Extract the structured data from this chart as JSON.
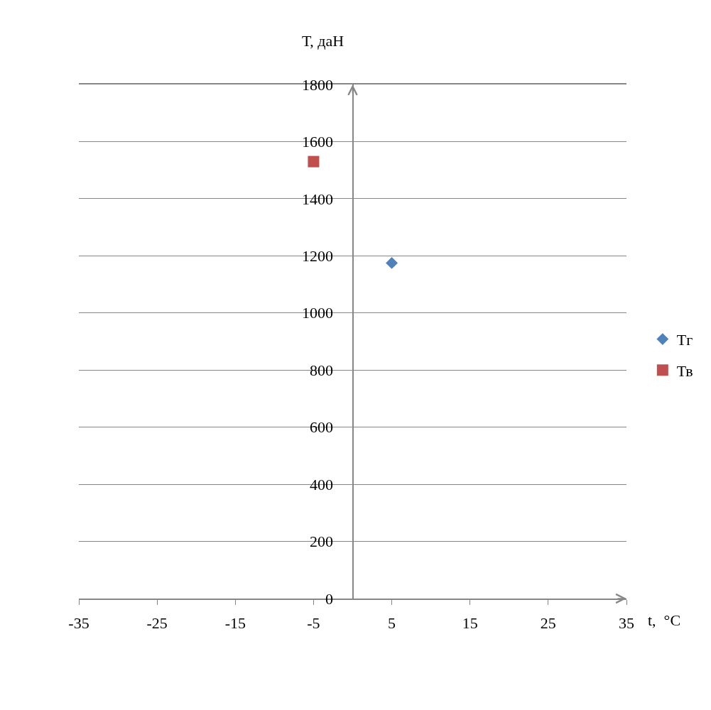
{
  "chart_data": {
    "type": "scatter",
    "xlabel": "t,  °C",
    "ylabel": "Т, даН",
    "series": [
      {
        "name": "Тг",
        "color": "#4f81bd",
        "marker": "diamond",
        "x": [
          5
        ],
        "values": [
          1175
        ]
      },
      {
        "name": "Тв",
        "color": "#c0504d",
        "marker": "square",
        "x": [
          -5
        ],
        "values": [
          1530
        ]
      }
    ],
    "xlim": [
      -35,
      35
    ],
    "xticks": [
      -35,
      -25,
      -15,
      -5,
      5,
      15,
      25,
      35
    ],
    "ylim": [
      0,
      1800
    ],
    "yticks": [
      0,
      200,
      400,
      600,
      800,
      1000,
      1200,
      1400,
      1600,
      1800
    ],
    "grid": "y",
    "legend": "right"
  }
}
